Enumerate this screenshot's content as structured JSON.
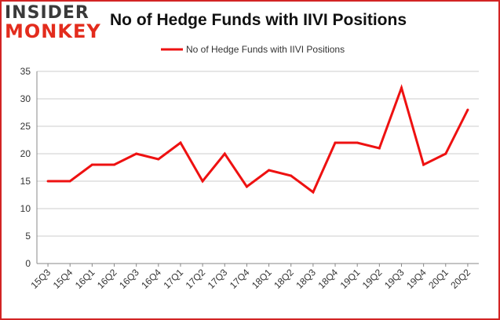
{
  "logo": {
    "top_text": "INSIDER",
    "bottom_text": "MONKEY"
  },
  "colors": {
    "accent": "#e32c1d",
    "line": "#ee1111",
    "frame": "#d22424",
    "grid": "#cccccc",
    "axis": "#888888",
    "text": "#333333"
  },
  "chart_data": {
    "type": "line",
    "title": "No of Hedge Funds with IIVI Positions",
    "xlabel": "",
    "ylabel": "",
    "categories": [
      "15Q3",
      "15Q4",
      "16Q1",
      "16Q2",
      "16Q3",
      "16Q4",
      "17Q1",
      "17Q2",
      "17Q3",
      "17Q4",
      "18Q1",
      "18Q2",
      "18Q3",
      "18Q4",
      "19Q1",
      "19Q2",
      "19Q3",
      "19Q4",
      "20Q1",
      "20Q2"
    ],
    "series": [
      {
        "name": "No of Hedge Funds with IIVI  Positions",
        "values": [
          15,
          15,
          18,
          18,
          20,
          19,
          22,
          15,
          20,
          14,
          17,
          16,
          13,
          22,
          22,
          21,
          32,
          18,
          20,
          28
        ]
      }
    ],
    "ylim": [
      0,
      35
    ],
    "yticks": [
      0,
      5,
      10,
      15,
      20,
      25,
      30,
      35
    ],
    "grid": true,
    "legend": "top-center"
  }
}
